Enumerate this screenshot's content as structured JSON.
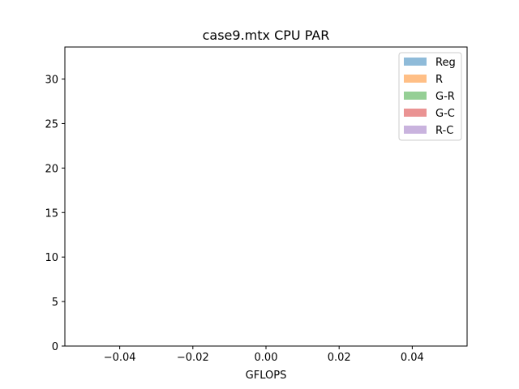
{
  "chart_data": {
    "type": "bar",
    "title": "case9.mtx CPU PAR",
    "xlabel": "GFLOPS",
    "ylabel": "",
    "xlim": [
      -0.055,
      0.055
    ],
    "ylim": [
      0,
      33.6
    ],
    "x_ticks": [
      -0.04,
      -0.02,
      0.0,
      0.02,
      0.04
    ],
    "x_tick_labels": [
      "−0.04",
      "−0.02",
      "0.00",
      "0.02",
      "0.04"
    ],
    "y_ticks": [
      0,
      5,
      10,
      15,
      20,
      25,
      30
    ],
    "y_tick_labels": [
      "0",
      "5",
      "10",
      "15",
      "20",
      "25",
      "30"
    ],
    "grid": false,
    "legend_position": "top-right",
    "series": [
      {
        "name": "Reg",
        "color": "#1f77b4",
        "alpha": 0.5,
        "values": []
      },
      {
        "name": "R",
        "color": "#ff7f0e",
        "alpha": 0.5,
        "values": []
      },
      {
        "name": "G-R",
        "color": "#2ca02c",
        "alpha": 0.5,
        "values": []
      },
      {
        "name": "G-C",
        "color": "#d62728",
        "alpha": 0.5,
        "values": []
      },
      {
        "name": "R-C",
        "color": "#9467bd",
        "alpha": 0.5,
        "values": []
      }
    ]
  }
}
